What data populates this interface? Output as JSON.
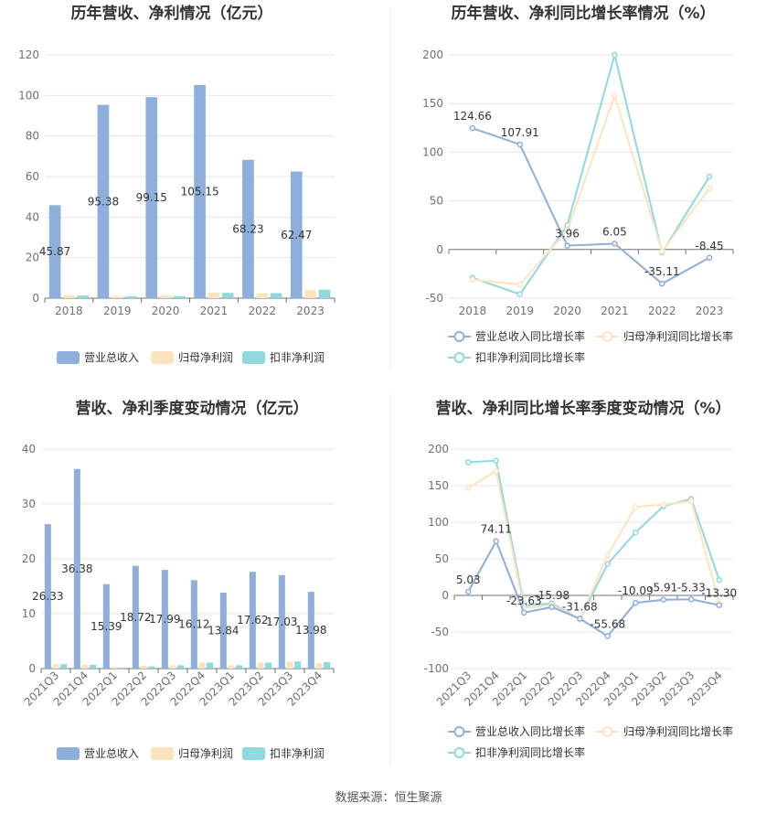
{
  "source_text": "数据来源：恒生聚源",
  "chart_data": [
    {
      "type": "bar",
      "title": "历年营收、净利情况（亿元）",
      "categories": [
        "2018",
        "2019",
        "2020",
        "2021",
        "2022",
        "2023"
      ],
      "ylim": [
        0,
        120
      ],
      "yticks": [
        0,
        20,
        40,
        60,
        80,
        100,
        120
      ],
      "grid": true,
      "legend_position": "bottom",
      "series": [
        {
          "name": "营业总收入",
          "color": "#8eaedb",
          "values": [
            45.87,
            95.38,
            99.15,
            105.15,
            68.23,
            62.47
          ],
          "labels": [
            "45.87",
            "95.38",
            "99.15",
            "105.15",
            "68.23",
            "62.47"
          ]
        },
        {
          "name": "归母净利润",
          "color": "#fbe4bd",
          "values": [
            1.4,
            1.0,
            1.3,
            2.8,
            2.4,
            4.0
          ]
        },
        {
          "name": "扣非净利润",
          "color": "#8fd9dc",
          "values": [
            1.3,
            0.9,
            1.0,
            2.6,
            2.5,
            4.2
          ]
        }
      ]
    },
    {
      "type": "line",
      "title": "历年营收、净利同比增长率情况（%）",
      "categories": [
        "2018",
        "2019",
        "2020",
        "2021",
        "2022",
        "2023"
      ],
      "ylim": [
        -50,
        200
      ],
      "yticks": [
        -50,
        0,
        50,
        100,
        150,
        200
      ],
      "grid": true,
      "legend_position": "bottom",
      "series": [
        {
          "name": "营业总收入同比增长率",
          "color": "#8eaedb",
          "values": [
            124.66,
            107.91,
            3.96,
            6.05,
            -35.11,
            -8.45
          ],
          "labels": [
            "124.66",
            "107.91",
            "3.96",
            "6.05",
            "-35.11",
            "-8.45"
          ]
        },
        {
          "name": "归母净利润同比增长率",
          "color": "#fbe4bd",
          "values": [
            -31,
            -36,
            20,
            158,
            -2,
            63
          ]
        },
        {
          "name": "扣非净利润同比增长率",
          "color": "#8fd9dc",
          "values": [
            -29,
            -46,
            25,
            200,
            -3,
            75
          ]
        }
      ]
    },
    {
      "type": "bar",
      "title": "营收、净利季度变动情况（亿元）",
      "categories": [
        "2021Q3",
        "2021Q4",
        "2022Q1",
        "2022Q2",
        "2022Q3",
        "2022Q4",
        "2023Q1",
        "2023Q2",
        "2023Q3",
        "2023Q4"
      ],
      "ylim": [
        0,
        40
      ],
      "yticks": [
        0,
        10,
        20,
        30,
        40
      ],
      "grid": true,
      "legend_position": "bottom",
      "series": [
        {
          "name": "营业总收入",
          "color": "#8eaedb",
          "values": [
            26.33,
            36.38,
            15.39,
            18.72,
            17.99,
            16.12,
            13.84,
            17.62,
            17.03,
            13.98
          ],
          "labels": [
            "26.33",
            "36.38",
            "15.39",
            "18.72",
            "17.99",
            "16.12",
            "13.84",
            "17.62",
            "17.03",
            "13.98"
          ]
        },
        {
          "name": "归母净利润",
          "color": "#fbe4bd",
          "values": [
            0.8,
            0.7,
            0.3,
            0.5,
            0.6,
            1.1,
            0.6,
            1.1,
            1.3,
            1.0
          ]
        },
        {
          "name": "扣非净利润",
          "color": "#8fd9dc",
          "values": [
            0.8,
            0.7,
            0.2,
            0.4,
            0.6,
            1.1,
            0.6,
            1.1,
            1.3,
            1.2
          ]
        }
      ]
    },
    {
      "type": "line",
      "title": "营收、净利同比增长率季度变动情况（%）",
      "categories": [
        "2021Q3",
        "2021Q4",
        "2022Q1",
        "2022Q2",
        "2022Q3",
        "2022Q4",
        "2023Q1",
        "2023Q2",
        "2023Q3",
        "2023Q4"
      ],
      "ylim": [
        -100,
        200
      ],
      "yticks": [
        -100,
        -50,
        0,
        50,
        100,
        150,
        200
      ],
      "grid": true,
      "legend_position": "bottom",
      "series": [
        {
          "name": "营业总收入同比增长率",
          "color": "#8eaedb",
          "values": [
            5.03,
            74.11,
            -23.63,
            -15.98,
            -31.68,
            -55.68,
            -10.09,
            -5.91,
            -5.33,
            -13.3
          ],
          "labels": [
            "5.03",
            "74.11",
            "-23.63",
            "-15.98",
            "-31.68",
            "-55.68",
            "-10.09",
            "-5.91",
            "-5.33",
            "-13.30"
          ]
        },
        {
          "name": "归母净利润同比增长率",
          "color": "#fbe4bd",
          "values": [
            147,
            170,
            -18,
            -13,
            -33,
            55,
            121,
            124,
            129,
            -10
          ]
        },
        {
          "name": "扣非净利润同比增长率",
          "color": "#8fd9dc",
          "values": [
            182,
            184,
            -14,
            -11,
            -33,
            43,
            86,
            122,
            132,
            21
          ]
        }
      ]
    }
  ]
}
